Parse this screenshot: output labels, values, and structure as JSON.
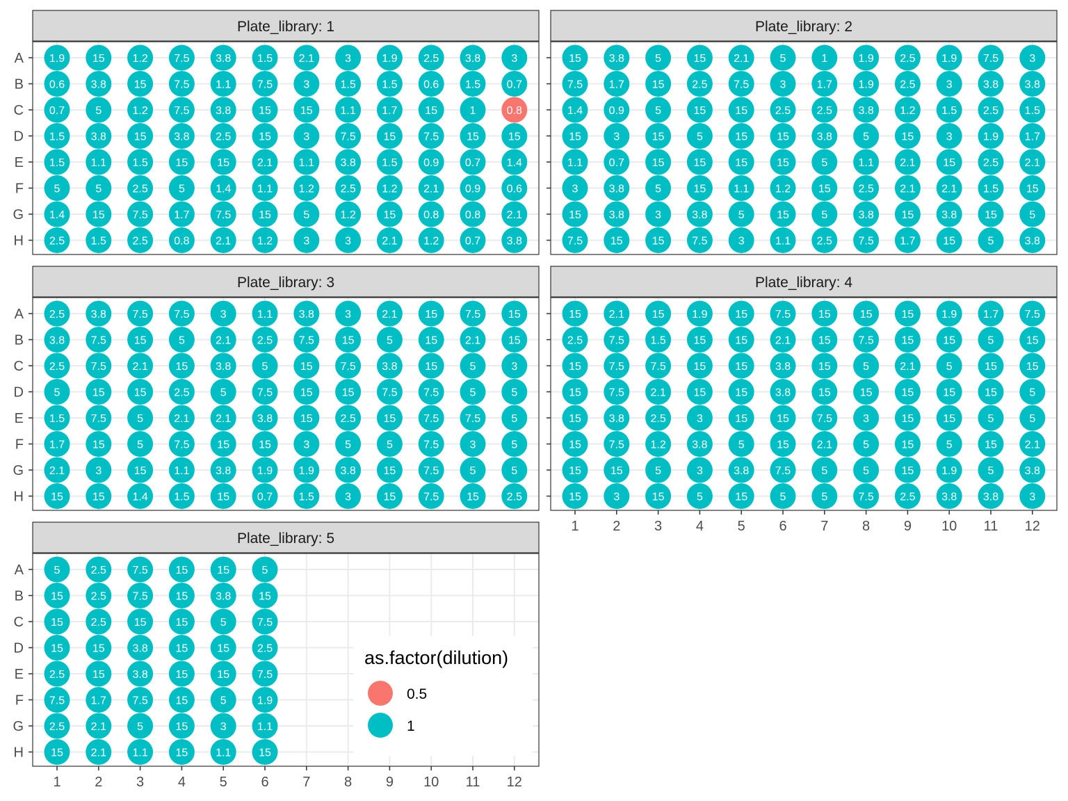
{
  "chart_data": {
    "type": "scatter",
    "title": "",
    "xlabel": "",
    "ylabel": "",
    "x": [
      "1",
      "2",
      "3",
      "4",
      "5",
      "6",
      "7",
      "8",
      "9",
      "10",
      "11",
      "12"
    ],
    "rows": [
      "A",
      "B",
      "C",
      "D",
      "E",
      "F",
      "G",
      "H"
    ],
    "grid": true,
    "legend": {
      "title": "as.factor(dilution)",
      "position": "inside-bottom-right",
      "entries": [
        {
          "label": "0.5",
          "color": "#F8766D"
        },
        {
          "label": "1",
          "color": "#00BFC4"
        }
      ]
    },
    "panels": [
      {
        "strip": "Plate_library: 1",
        "values": [
          [
            "1.9",
            "15",
            "1.2",
            "7.5",
            "3.8",
            "1.5",
            "2.1",
            "3",
            "1.9",
            "2.5",
            "3.8",
            "3"
          ],
          [
            "0.6",
            "3.8",
            "15",
            "7.5",
            "1.1",
            "7.5",
            "3",
            "1.5",
            "1.5",
            "0.6",
            "1.5",
            "0.7"
          ],
          [
            "0.7",
            "5",
            "1.2",
            "7.5",
            "3.8",
            "15",
            "15",
            "1.1",
            "1.7",
            "15",
            "1",
            "0.8"
          ],
          [
            "1.5",
            "3.8",
            "15",
            "3.8",
            "2.5",
            "15",
            "3",
            "7.5",
            "15",
            "7.5",
            "15",
            "15"
          ],
          [
            "1.5",
            "1.1",
            "1.5",
            "15",
            "15",
            "2.1",
            "1.1",
            "3.8",
            "1.5",
            "0.9",
            "0.7",
            "1.4"
          ],
          [
            "5",
            "5",
            "2.5",
            "5",
            "1.4",
            "1.1",
            "1.2",
            "2.5",
            "1.2",
            "2.1",
            "0.9",
            "0.6"
          ],
          [
            "1.4",
            "15",
            "7.5",
            "1.7",
            "7.5",
            "15",
            "5",
            "1.2",
            "15",
            "0.8",
            "0.8",
            "2.1"
          ],
          [
            "2.5",
            "1.5",
            "2.5",
            "0.8",
            "2.1",
            "1.2",
            "3",
            "3",
            "2.1",
            "1.2",
            "0.7",
            "3.8"
          ]
        ],
        "dilution": [
          [
            1,
            1,
            1,
            1,
            1,
            1,
            1,
            1,
            1,
            1,
            1,
            1
          ],
          [
            1,
            1,
            1,
            1,
            1,
            1,
            1,
            1,
            1,
            1,
            1,
            1
          ],
          [
            1,
            1,
            1,
            1,
            1,
            1,
            1,
            1,
            1,
            1,
            1,
            0.5
          ],
          [
            1,
            1,
            1,
            1,
            1,
            1,
            1,
            1,
            1,
            1,
            1,
            1
          ],
          [
            1,
            1,
            1,
            1,
            1,
            1,
            1,
            1,
            1,
            1,
            1,
            1
          ],
          [
            1,
            1,
            1,
            1,
            1,
            1,
            1,
            1,
            1,
            1,
            1,
            1
          ],
          [
            1,
            1,
            1,
            1,
            1,
            1,
            1,
            1,
            1,
            1,
            1,
            1
          ],
          [
            1,
            1,
            1,
            1,
            1,
            1,
            1,
            1,
            1,
            1,
            1,
            1
          ]
        ]
      },
      {
        "strip": "Plate_library: 2",
        "values": [
          [
            "15",
            "3.8",
            "5",
            "15",
            "2.1",
            "5",
            "1",
            "1.9",
            "2.5",
            "1.9",
            "7.5",
            "3"
          ],
          [
            "7.5",
            "1.7",
            "15",
            "2.5",
            "7.5",
            "3",
            "1.7",
            "1.9",
            "2.5",
            "3",
            "3.8",
            "3.8"
          ],
          [
            "1.4",
            "0.9",
            "5",
            "15",
            "15",
            "2.5",
            "2.5",
            "3.8",
            "1.2",
            "1.5",
            "2.5",
            "1.5"
          ],
          [
            "15",
            "3",
            "15",
            "5",
            "15",
            "15",
            "3.8",
            "5",
            "15",
            "3",
            "1.9",
            "1.7"
          ],
          [
            "1.1",
            "0.7",
            "15",
            "15",
            "15",
            "15",
            "5",
            "1.1",
            "2.1",
            "15",
            "2.5",
            "2.1"
          ],
          [
            "3",
            "3.8",
            "5",
            "15",
            "1.1",
            "1.2",
            "15",
            "2.5",
            "2.1",
            "2.1",
            "1.5",
            "15"
          ],
          [
            "15",
            "3.8",
            "3",
            "3.8",
            "5",
            "15",
            "5",
            "3.8",
            "15",
            "3.8",
            "15",
            "5"
          ],
          [
            "7.5",
            "15",
            "15",
            "7.5",
            "3",
            "1.1",
            "2.5",
            "7.5",
            "1.7",
            "15",
            "5",
            "3.8"
          ]
        ]
      },
      {
        "strip": "Plate_library: 3",
        "values": [
          [
            "2.5",
            "3.8",
            "7.5",
            "7.5",
            "3",
            "1.1",
            "3.8",
            "3",
            "2.1",
            "15",
            "7.5",
            "15"
          ],
          [
            "3.8",
            "7.5",
            "15",
            "5",
            "2.1",
            "2.5",
            "7.5",
            "15",
            "5",
            "15",
            "2.1",
            "15"
          ],
          [
            "2.5",
            "7.5",
            "2.1",
            "15",
            "3.8",
            "5",
            "15",
            "7.5",
            "3.8",
            "15",
            "5",
            "3"
          ],
          [
            "5",
            "15",
            "15",
            "2.5",
            "5",
            "7.5",
            "15",
            "15",
            "7.5",
            "7.5",
            "5",
            "5"
          ],
          [
            "1.5",
            "7.5",
            "5",
            "2.1",
            "2.1",
            "3.8",
            "15",
            "2.5",
            "15",
            "7.5",
            "7.5",
            "5"
          ],
          [
            "1.7",
            "15",
            "5",
            "7.5",
            "15",
            "15",
            "3",
            "5",
            "5",
            "7.5",
            "3",
            "5"
          ],
          [
            "2.1",
            "3",
            "15",
            "1.1",
            "3.8",
            "1.9",
            "1.9",
            "3.8",
            "15",
            "7.5",
            "5",
            "5"
          ],
          [
            "15",
            "15",
            "1.4",
            "1.5",
            "15",
            "0.7",
            "1.5",
            "3",
            "15",
            "7.5",
            "15",
            "2.5"
          ]
        ]
      },
      {
        "strip": "Plate_library: 4",
        "values": [
          [
            "15",
            "2.1",
            "15",
            "1.9",
            "15",
            "7.5",
            "15",
            "15",
            "15",
            "1.9",
            "1.7",
            "7.5"
          ],
          [
            "2.5",
            "7.5",
            "1.5",
            "15",
            "15",
            "2.1",
            "15",
            "7.5",
            "15",
            "15",
            "5",
            "15"
          ],
          [
            "15",
            "7.5",
            "7.5",
            "15",
            "15",
            "3.8",
            "15",
            "5",
            "2.1",
            "5",
            "15",
            "15"
          ],
          [
            "15",
            "7.5",
            "2.1",
            "15",
            "15",
            "3.8",
            "15",
            "15",
            "15",
            "15",
            "15",
            "5"
          ],
          [
            "15",
            "3.8",
            "2.5",
            "3",
            "15",
            "15",
            "7.5",
            "3",
            "15",
            "15",
            "5",
            "5"
          ],
          [
            "15",
            "7.5",
            "1.2",
            "3.8",
            "5",
            "15",
            "2.1",
            "5",
            "15",
            "5",
            "15",
            "2.1"
          ],
          [
            "15",
            "15",
            "5",
            "3",
            "3.8",
            "7.5",
            "5",
            "5",
            "15",
            "1.9",
            "5",
            "3.8"
          ],
          [
            "15",
            "3",
            "15",
            "5",
            "15",
            "5",
            "5",
            "7.5",
            "2.5",
            "3.8",
            "3.8",
            "3"
          ]
        ]
      },
      {
        "strip": "Plate_library: 5",
        "values": [
          [
            "5",
            "2.5",
            "7.5",
            "15",
            "15",
            "5"
          ],
          [
            "15",
            "2.5",
            "7.5",
            "15",
            "3.8",
            "15"
          ],
          [
            "15",
            "2.5",
            "15",
            "15",
            "5",
            "7.5"
          ],
          [
            "15",
            "15",
            "3.8",
            "15",
            "15",
            "2.5"
          ],
          [
            "2.5",
            "15",
            "3.8",
            "15",
            "15",
            "7.5"
          ],
          [
            "7.5",
            "1.7",
            "7.5",
            "15",
            "5",
            "1.9"
          ],
          [
            "2.5",
            "2.1",
            "5",
            "15",
            "3",
            "1.1"
          ],
          [
            "15",
            "2.1",
            "1.1",
            "15",
            "1.1",
            "15"
          ]
        ]
      }
    ]
  }
}
